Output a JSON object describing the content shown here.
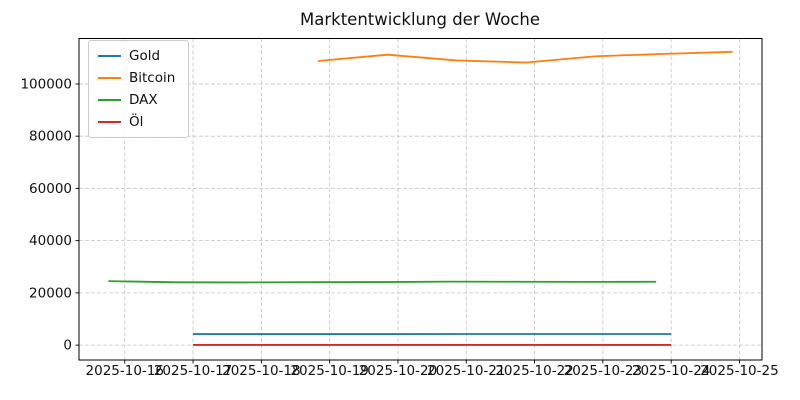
{
  "chart_data": {
    "type": "line",
    "title": "Marktentwicklung der Woche",
    "xlabel": "",
    "ylabel": "",
    "grid": true,
    "grid_style": "dashed",
    "legend_position": "upper left",
    "x_axis": {
      "unit": "date (day of October 2025)",
      "tick_days": [
        16,
        17,
        18,
        19,
        20,
        21,
        22,
        23,
        24,
        25
      ],
      "tick_labels": [
        "2025-10-16",
        "2025-10-17",
        "2025-10-18",
        "2025-10-19",
        "2025-10-20",
        "2025-10-21",
        "2025-10-22",
        "2025-10-23",
        "2025-10-24",
        "2025-10-25"
      ],
      "xlim_days": [
        15.33,
        25.33
      ]
    },
    "y_axis": {
      "ticks": [
        0,
        20000,
        40000,
        60000,
        80000,
        100000
      ],
      "tick_labels": [
        "0",
        "20000",
        "40000",
        "60000",
        "80000",
        "100000"
      ],
      "ylim": [
        -5700,
        117400
      ]
    },
    "series": [
      {
        "name": "Gold",
        "color": "#1f77b4",
        "x_days": [
          17,
          18,
          19,
          20,
          21,
          22,
          23,
          24
        ],
        "values": [
          4240,
          4230,
          4230,
          4240,
          4245,
          4250,
          4245,
          4250
        ]
      },
      {
        "name": "Bitcoin",
        "color": "#ff7f0e",
        "x_days": [
          18.83,
          19.85,
          20.86,
          21.88,
          22.9,
          23.9,
          24.9
        ],
        "values": [
          108800,
          111200,
          109000,
          108200,
          110600,
          111500,
          112300
        ]
      },
      {
        "name": "DAX",
        "color": "#2ca02c",
        "x_days": [
          15.76,
          16.77,
          17.77,
          18.77,
          19.77,
          20.77,
          21.77,
          22.78,
          23.78
        ],
        "values": [
          24500,
          24050,
          24000,
          24100,
          24150,
          24300,
          24250,
          24200,
          24250
        ]
      },
      {
        "name": "Öl",
        "color": "#d62728",
        "x_days": [
          17,
          18,
          19,
          20,
          21,
          22,
          23,
          24
        ],
        "values": [
          61.7,
          61.0,
          60.9,
          60.7,
          61.1,
          61.5,
          61.0,
          61.3
        ]
      }
    ],
    "colors": {
      "background": "#ffffff",
      "grid": "#c4c4c4",
      "spine": "#000000",
      "text": "#111111"
    }
  }
}
